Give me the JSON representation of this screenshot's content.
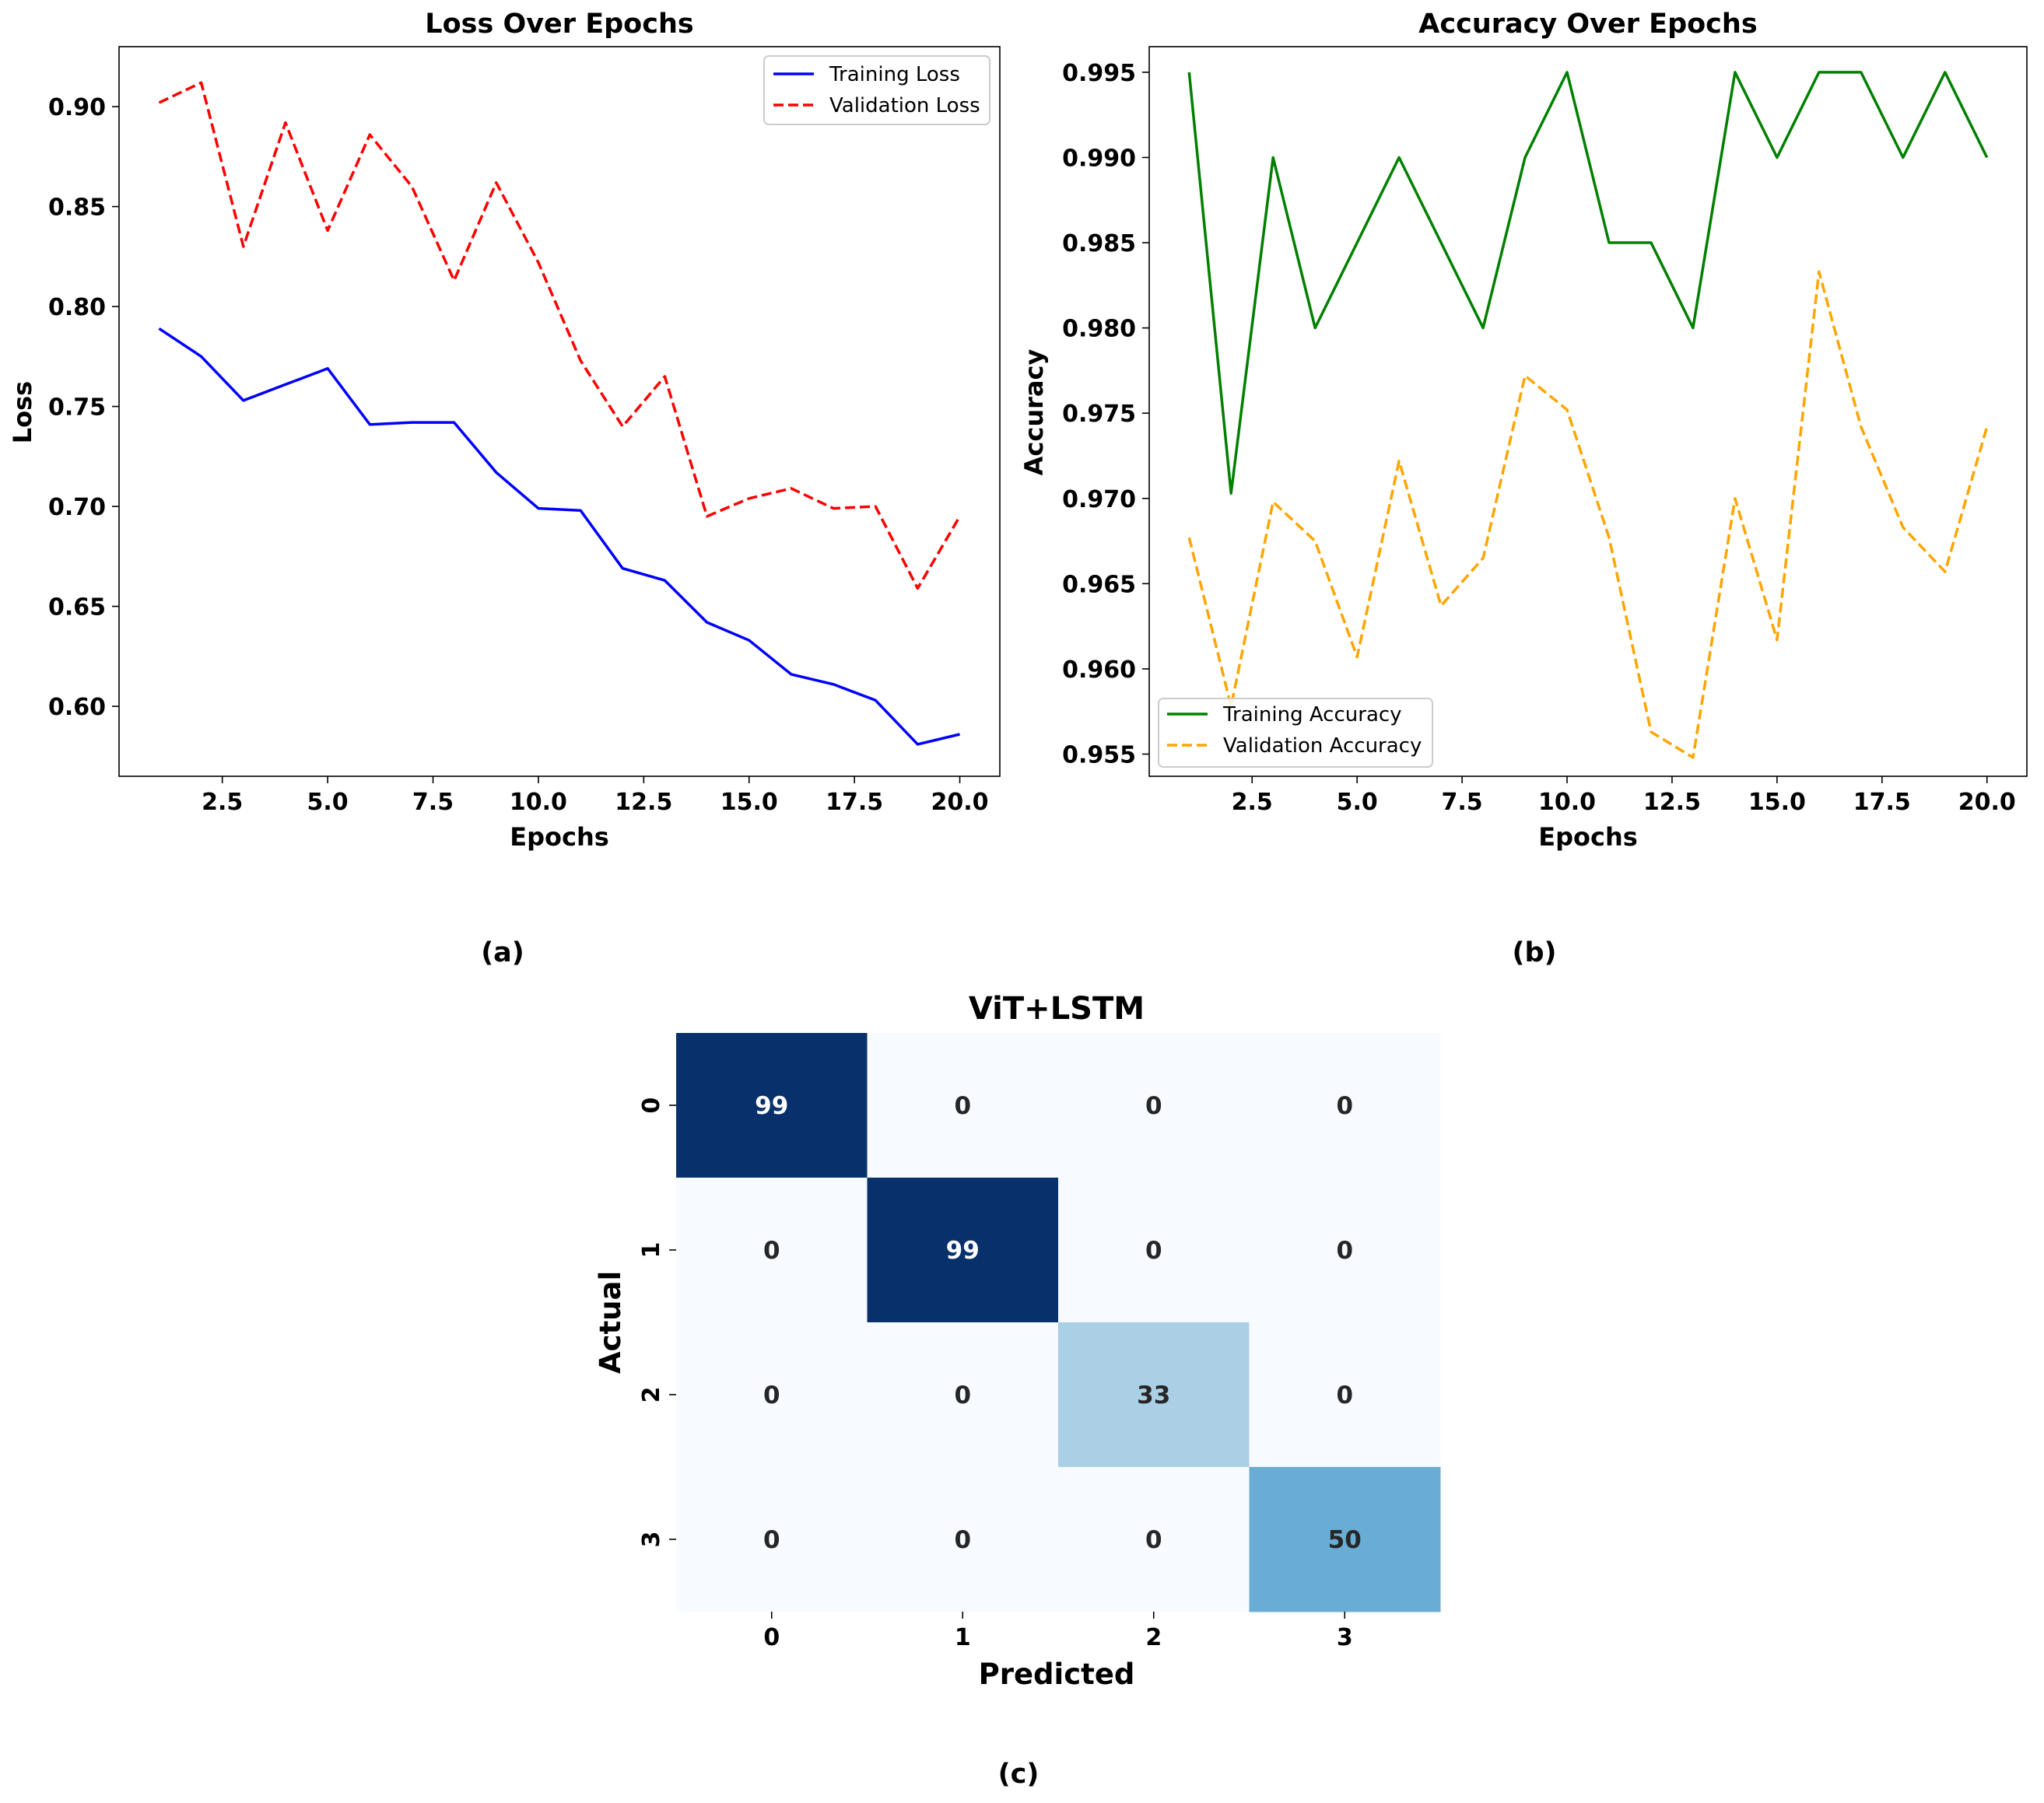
{
  "chart_data": [
    {
      "id": "loss",
      "type": "line",
      "title": "Loss Over Epochs",
      "xlabel": "Epochs",
      "ylabel": "Loss",
      "caption": "(a)",
      "xlim": [
        0.05,
        20.95
      ],
      "ylim": [
        0.565,
        0.93
      ],
      "xticks": [
        "2.5",
        "5.0",
        "7.5",
        "10.0",
        "12.5",
        "15.0",
        "17.5",
        "20.0"
      ],
      "yticks": [
        "0.60",
        "0.65",
        "0.70",
        "0.75",
        "0.80",
        "0.85",
        "0.90"
      ],
      "legend_position": "top-right",
      "x": [
        1,
        2,
        3,
        4,
        5,
        6,
        7,
        8,
        9,
        10,
        11,
        12,
        13,
        14,
        15,
        16,
        17,
        18,
        19,
        20
      ],
      "series": [
        {
          "name": "Training Loss",
          "color": "#0000ff",
          "dash": "solid",
          "values": [
            0.789,
            0.775,
            0.753,
            0.761,
            0.769,
            0.741,
            0.742,
            0.742,
            0.717,
            0.699,
            0.698,
            0.669,
            0.663,
            0.642,
            0.633,
            0.616,
            0.611,
            0.603,
            0.581,
            0.586
          ]
        },
        {
          "name": "Validation Loss",
          "color": "#ff0000",
          "dash": "dashed",
          "values": [
            0.902,
            0.912,
            0.83,
            0.892,
            0.838,
            0.886,
            0.86,
            0.813,
            0.862,
            0.822,
            0.773,
            0.74,
            0.765,
            0.695,
            0.704,
            0.709,
            0.699,
            0.7,
            0.659,
            0.695
          ]
        }
      ]
    },
    {
      "id": "accuracy",
      "type": "line",
      "title": "Accuracy Over Epochs",
      "xlabel": "Epochs",
      "ylabel": "Accuracy",
      "caption": "(b)",
      "xlim": [
        0.05,
        20.95
      ],
      "ylim": [
        0.9537,
        0.9965
      ],
      "xticks": [
        "2.5",
        "5.0",
        "7.5",
        "10.0",
        "12.5",
        "15.0",
        "17.5",
        "20.0"
      ],
      "yticks": [
        "0.955",
        "0.960",
        "0.965",
        "0.970",
        "0.975",
        "0.980",
        "0.985",
        "0.990",
        "0.995"
      ],
      "legend_position": "bottom-left",
      "x": [
        1,
        2,
        3,
        4,
        5,
        6,
        7,
        8,
        9,
        10,
        11,
        12,
        13,
        14,
        15,
        16,
        17,
        18,
        19,
        20
      ],
      "series": [
        {
          "name": "Training Accuracy",
          "color": "#008000",
          "dash": "solid",
          "values": [
            0.995,
            0.9703,
            0.99,
            0.98,
            0.985,
            0.99,
            0.985,
            0.98,
            0.99,
            0.995,
            0.985,
            0.985,
            0.98,
            0.995,
            0.99,
            0.995,
            0.995,
            0.99,
            0.995,
            0.99
          ]
        },
        {
          "name": "Validation Accuracy",
          "color": "#ffa500",
          "dash": "dashed",
          "values": [
            0.9677,
            0.9578,
            0.9698,
            0.9675,
            0.9607,
            0.9722,
            0.9637,
            0.9665,
            0.9772,
            0.9752,
            0.9677,
            0.9563,
            0.9548,
            0.97,
            0.9617,
            0.9833,
            0.9742,
            0.9683,
            0.9657,
            0.9742
          ]
        }
      ]
    },
    {
      "id": "confusion",
      "type": "heatmap",
      "title": "ViT+LSTM",
      "xlabel": "Predicted",
      "ylabel": "Actual",
      "caption": "(c)",
      "x_categories": [
        "0",
        "1",
        "2",
        "3"
      ],
      "y_categories": [
        "0",
        "1",
        "2",
        "3"
      ],
      "values": [
        [
          99,
          0,
          0,
          0
        ],
        [
          0,
          99,
          0,
          0
        ],
        [
          0,
          0,
          33,
          0
        ],
        [
          0,
          0,
          0,
          50
        ]
      ]
    }
  ]
}
